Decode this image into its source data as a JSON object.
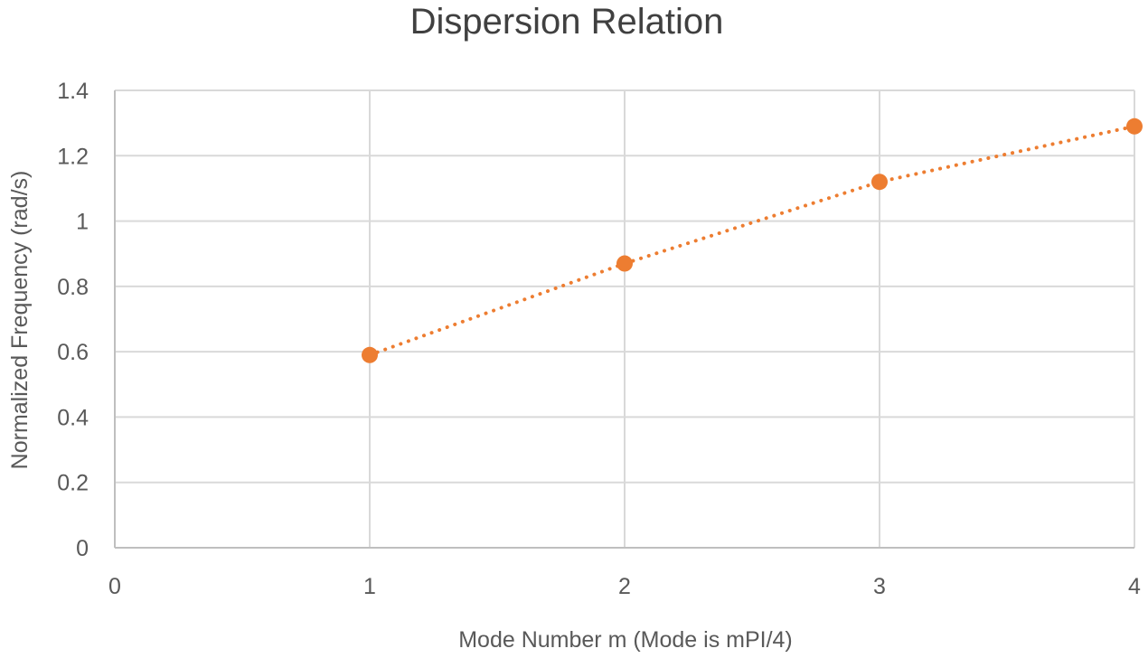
{
  "chart_data": {
    "type": "line",
    "title": "Dispersion Relation",
    "xlabel": "Mode Number  m (Mode is mPI/4)",
    "ylabel": "Normalized Frequency (rad/s)",
    "x": [
      1,
      2,
      3,
      4
    ],
    "series": [
      {
        "name": "Normalized Frequency",
        "values": [
          0.59,
          0.87,
          1.12,
          1.29
        ],
        "color": "#ED7D31",
        "line_style": "dotted",
        "marker": "circle"
      }
    ],
    "xlim": [
      0,
      4
    ],
    "ylim": [
      0,
      1.4
    ],
    "x_ticks": [
      "0",
      "1",
      "2",
      "3",
      "4"
    ],
    "y_ticks": [
      "0",
      "0.2",
      "0.4",
      "0.6",
      "0.8",
      "1",
      "1.2",
      "1.4"
    ],
    "grid": true,
    "legend": "none"
  },
  "colors": {
    "series": "#ED7D31",
    "grid": "#D9D9D9",
    "text": "#595959",
    "title": "#404040"
  }
}
